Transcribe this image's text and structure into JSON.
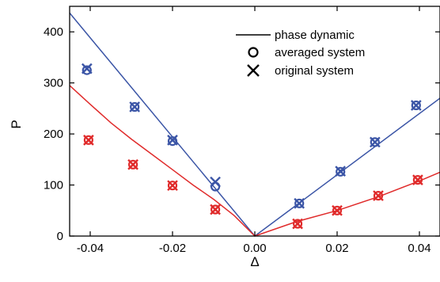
{
  "chart_data": {
    "type": "scatter",
    "xlabel": "Δ",
    "ylabel": "P",
    "xlim": [
      -0.045,
      0.045
    ],
    "ylim": [
      0,
      450
    ],
    "x_ticks": [
      -0.04,
      -0.02,
      0.0,
      0.02,
      0.04
    ],
    "x_tick_labels": [
      "-0.04",
      "-0.02",
      "0.00",
      "0.02",
      "0.04"
    ],
    "y_ticks": [
      0,
      100,
      200,
      300,
      400
    ],
    "y_tick_labels": [
      "0",
      "100",
      "200",
      "300",
      "400"
    ],
    "grid": false,
    "legend_position": "top-right",
    "legend": [
      {
        "label": "phase dynamic",
        "marker": "line"
      },
      {
        "label": "averaged system",
        "marker": "circle"
      },
      {
        "label": "original system",
        "marker": "cross"
      }
    ],
    "curves": [
      {
        "color": "#3b55a6",
        "x": [
          -0.045,
          0.0,
          0.045
        ],
        "y": [
          437,
          0,
          270
        ]
      },
      {
        "color": "#e02b2b",
        "x": [
          -0.045,
          -0.04,
          -0.035,
          -0.03,
          -0.025,
          -0.02,
          -0.015,
          -0.01,
          -0.005,
          0.0,
          0.01,
          0.02,
          0.03,
          0.04,
          0.045
        ],
        "y": [
          295,
          258,
          222,
          190,
          160,
          130,
          100,
          72,
          40,
          0,
          28,
          50,
          77,
          108,
          125
        ]
      }
    ],
    "points": [
      {
        "color": "#3b55a6",
        "x": [
          -0.0408,
          -0.0292,
          -0.02,
          -0.0096,
          0.0108,
          0.0208,
          0.0292,
          0.0392
        ],
        "averaged": [
          325,
          253,
          186,
          97,
          64,
          126,
          184,
          256
        ],
        "original": [
          328,
          253,
          188,
          106,
          64,
          127,
          184,
          256
        ]
      },
      {
        "color": "#e02b2b",
        "x": [
          -0.0404,
          -0.0296,
          -0.02,
          -0.0096,
          0.0104,
          0.02,
          0.03,
          0.0396
        ],
        "averaged": [
          188,
          140,
          99,
          52,
          24,
          50,
          79,
          110
        ],
        "original": [
          188,
          140,
          99,
          52,
          24,
          50,
          79,
          110
        ]
      }
    ]
  }
}
